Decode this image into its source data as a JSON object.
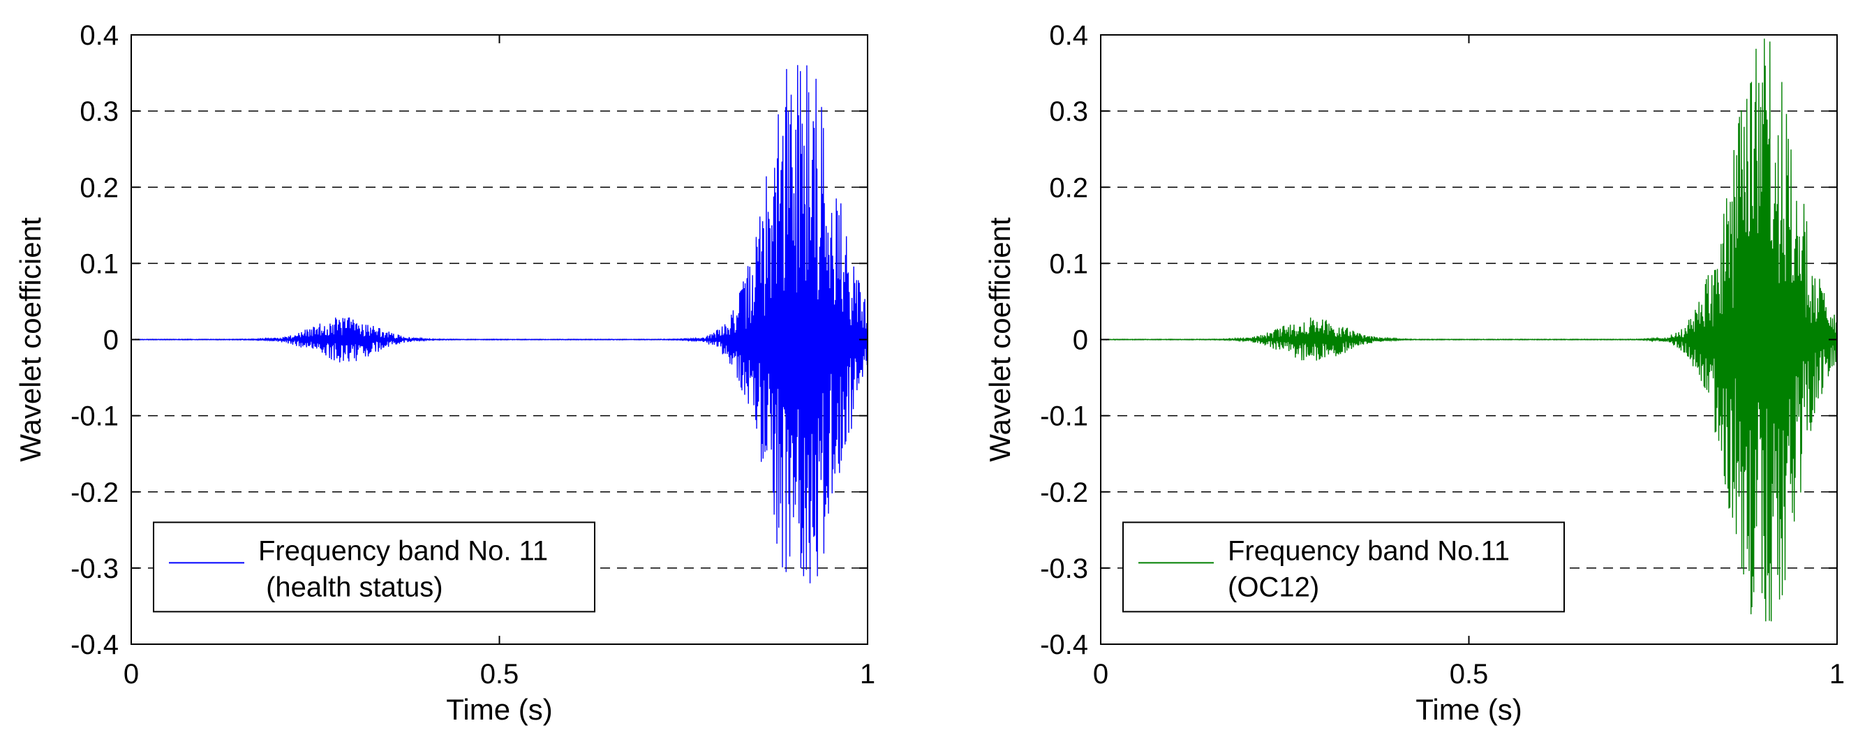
{
  "chart_data": [
    {
      "type": "line",
      "xlabel": "Time (s)",
      "ylabel": "Wavelet coefficient",
      "xlim": [
        0,
        1
      ],
      "ylim": [
        -0.4,
        0.4
      ],
      "xticks": [
        "0",
        "0.5",
        "1"
      ],
      "yticks": [
        "0.4",
        "0.3",
        "0.2",
        "0.1",
        "0",
        "-0.1",
        "-0.2",
        "-0.3",
        "-0.4"
      ],
      "grid": "horizontal dashed",
      "legend_position": "bottom-left",
      "legend": [
        "Frequency band No. 11",
        " (health status)"
      ],
      "series": [
        {
          "color": "#0000ff",
          "bursts": [
            {
              "center": 0.29,
              "width": 0.15,
              "amplitude": 0.03
            },
            {
              "center": 0.91,
              "width": 0.16,
              "amplitude": 0.4
            }
          ],
          "peak_max": 0.4,
          "peak_min": -0.37
        }
      ]
    },
    {
      "type": "line",
      "xlabel": "Time (s)",
      "ylabel": "Wavelet coefficient",
      "xlim": [
        0,
        1
      ],
      "ylim": [
        -0.4,
        0.4
      ],
      "xticks": [
        "0",
        "0.5",
        "1"
      ],
      "yticks": [
        "0.4",
        "0.3",
        "0.2",
        "0.1",
        "0",
        "-0.1",
        "-0.2",
        "-0.3",
        "-0.4"
      ],
      "grid": "horizontal dashed",
      "legend_position": "bottom-left",
      "legend": [
        "Frequency band No.11",
        "(OC12)"
      ],
      "series": [
        {
          "color": "#008000",
          "bursts": [
            {
              "center": 0.29,
              "width": 0.15,
              "amplitude": 0.03
            },
            {
              "center": 0.9,
              "width": 0.16,
              "amplitude": 0.4
            }
          ],
          "peak_max": 0.4,
          "peak_min": -0.37
        }
      ]
    }
  ]
}
